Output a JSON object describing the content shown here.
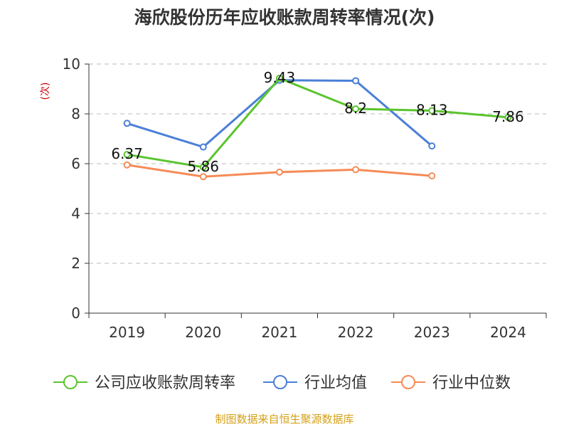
{
  "chart_data": {
    "type": "line",
    "title": "海欣股份历年应收账款周转率情况(次)",
    "xlabel": "",
    "ylabel": "(次)",
    "categories": [
      "2019",
      "2020",
      "2021",
      "2022",
      "2023",
      "2024"
    ],
    "ylim": [
      0,
      10
    ],
    "yticks": [
      0,
      2,
      4,
      6,
      8,
      10
    ],
    "grid": true,
    "legend_position": "bottom",
    "series": [
      {
        "name": "公司应收账款周转率",
        "color": "#5bc42e",
        "values": [
          6.37,
          5.86,
          9.43,
          8.2,
          8.13,
          7.86
        ],
        "show_labels": true
      },
      {
        "name": "行业均值",
        "color": "#4a7fd8",
        "values": [
          7.62,
          6.67,
          9.35,
          9.33,
          6.71,
          null
        ],
        "show_labels": false
      },
      {
        "name": "行业中位数",
        "color": "#f58b57",
        "values": [
          5.95,
          5.48,
          5.66,
          5.76,
          5.51,
          null
        ],
        "show_labels": false
      }
    ],
    "data_labels": [
      "6.37",
      "5.86",
      "9.43",
      "8.2",
      "8.13",
      "7.86"
    ],
    "source": "制图数据来自恒生聚源数据库",
    "source_color": "#d4a017",
    "ylabel_color": "#cc0000"
  }
}
